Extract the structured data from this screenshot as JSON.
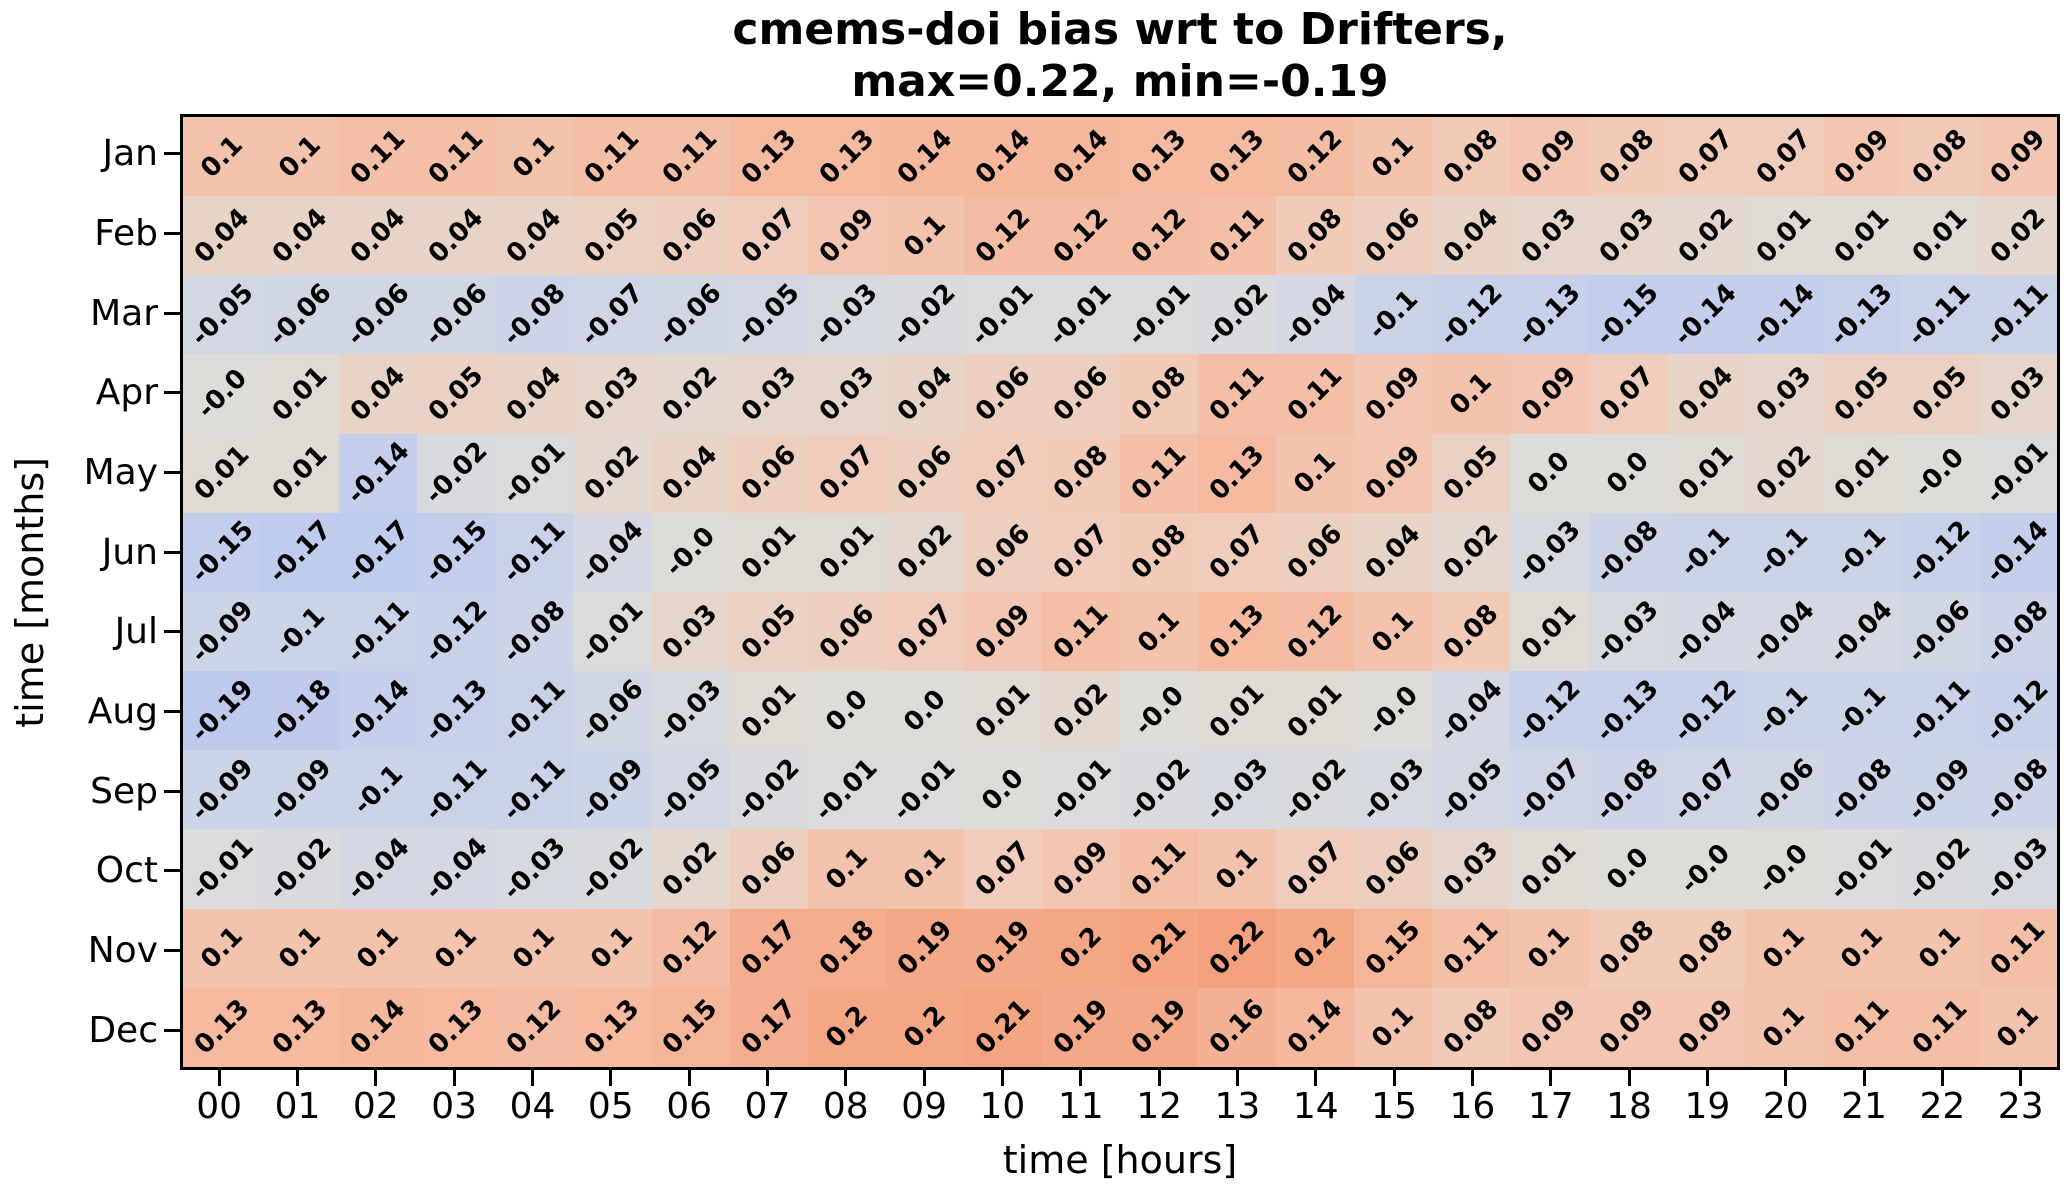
{
  "chart_data": {
    "type": "heatmap",
    "title_line1": "cmems-doi bias wrt to Drifters,",
    "title_line2": "max=0.22, min=-0.19",
    "stated_max": 0.22,
    "stated_min": -0.19,
    "xlabel": "time [hours]",
    "ylabel": "time [months]",
    "rows": [
      "Jan",
      "Feb",
      "Mar",
      "Apr",
      "May",
      "Jun",
      "Jul",
      "Aug",
      "Sep",
      "Oct",
      "Nov",
      "Dec"
    ],
    "columns": [
      "00",
      "01",
      "02",
      "03",
      "04",
      "05",
      "06",
      "07",
      "08",
      "09",
      "10",
      "11",
      "12",
      "13",
      "14",
      "15",
      "16",
      "17",
      "18",
      "19",
      "20",
      "21",
      "22",
      "23"
    ],
    "values": [
      [
        "0.1",
        "0.1",
        "0.11",
        "0.11",
        "0.1",
        "0.11",
        "0.11",
        "0.13",
        "0.13",
        "0.14",
        "0.14",
        "0.14",
        "0.13",
        "0.13",
        "0.12",
        "0.1",
        "0.08",
        "0.09",
        "0.08",
        "0.07",
        "0.07",
        "0.09",
        "0.08",
        "0.09"
      ],
      [
        "0.04",
        "0.04",
        "0.04",
        "0.04",
        "0.04",
        "0.05",
        "0.06",
        "0.07",
        "0.09",
        "0.1",
        "0.12",
        "0.12",
        "0.12",
        "0.11",
        "0.08",
        "0.06",
        "0.04",
        "0.03",
        "0.03",
        "0.02",
        "0.01",
        "0.01",
        "0.01",
        "0.02"
      ],
      [
        "-0.05",
        "-0.06",
        "-0.06",
        "-0.06",
        "-0.08",
        "-0.07",
        "-0.06",
        "-0.05",
        "-0.03",
        "-0.02",
        "-0.01",
        "-0.01",
        "-0.01",
        "-0.02",
        "-0.04",
        "-0.1",
        "-0.12",
        "-0.13",
        "-0.15",
        "-0.14",
        "-0.14",
        "-0.13",
        "-0.11",
        "-0.11"
      ],
      [
        "-0.0",
        "0.01",
        "0.04",
        "0.05",
        "0.04",
        "0.03",
        "0.02",
        "0.03",
        "0.03",
        "0.04",
        "0.06",
        "0.06",
        "0.08",
        "0.11",
        "0.11",
        "0.09",
        "0.1",
        "0.09",
        "0.07",
        "0.04",
        "0.03",
        "0.05",
        "0.05",
        "0.03"
      ],
      [
        "0.01",
        "0.01",
        "-0.14",
        "-0.02",
        "-0.01",
        "0.02",
        "0.04",
        "0.06",
        "0.07",
        "0.06",
        "0.07",
        "0.08",
        "0.11",
        "0.13",
        "0.1",
        "0.09",
        "0.05",
        "0.0",
        "0.0",
        "0.01",
        "0.02",
        "0.01",
        "-0.0",
        "-0.01"
      ],
      [
        "-0.15",
        "-0.17",
        "-0.17",
        "-0.15",
        "-0.11",
        "-0.04",
        "-0.0",
        "0.01",
        "0.01",
        "0.02",
        "0.06",
        "0.07",
        "0.08",
        "0.07",
        "0.06",
        "0.04",
        "0.02",
        "-0.03",
        "-0.08",
        "-0.1",
        "-0.1",
        "-0.1",
        "-0.12",
        "-0.14"
      ],
      [
        "-0.09",
        "-0.1",
        "-0.11",
        "-0.12",
        "-0.08",
        "-0.01",
        "0.03",
        "0.05",
        "0.06",
        "0.07",
        "0.09",
        "0.11",
        "0.1",
        "0.13",
        "0.12",
        "0.1",
        "0.08",
        "0.01",
        "-0.03",
        "-0.04",
        "-0.04",
        "-0.04",
        "-0.06",
        "-0.08"
      ],
      [
        "-0.19",
        "-0.18",
        "-0.14",
        "-0.13",
        "-0.11",
        "-0.06",
        "-0.03",
        "0.01",
        "0.0",
        "0.0",
        "0.01",
        "0.02",
        "-0.0",
        "0.01",
        "0.01",
        "-0.0",
        "-0.04",
        "-0.12",
        "-0.13",
        "-0.12",
        "-0.1",
        "-0.1",
        "-0.11",
        "-0.12"
      ],
      [
        "-0.09",
        "-0.09",
        "-0.1",
        "-0.11",
        "-0.11",
        "-0.09",
        "-0.05",
        "-0.02",
        "-0.01",
        "-0.01",
        "0.0",
        "-0.01",
        "-0.02",
        "-0.03",
        "-0.02",
        "-0.03",
        "-0.05",
        "-0.07",
        "-0.08",
        "-0.07",
        "-0.06",
        "-0.08",
        "-0.09",
        "-0.08"
      ],
      [
        "-0.01",
        "-0.02",
        "-0.04",
        "-0.04",
        "-0.03",
        "-0.02",
        "0.02",
        "0.06",
        "0.1",
        "0.1",
        "0.07",
        "0.09",
        "0.11",
        "0.1",
        "0.07",
        "0.06",
        "0.03",
        "0.01",
        "0.0",
        "-0.0",
        "-0.0",
        "-0.01",
        "-0.02",
        "-0.03"
      ],
      [
        "0.1",
        "0.1",
        "0.1",
        "0.1",
        "0.1",
        "0.1",
        "0.12",
        "0.17",
        "0.18",
        "0.19",
        "0.19",
        "0.2",
        "0.21",
        "0.22",
        "0.2",
        "0.15",
        "0.11",
        "0.1",
        "0.08",
        "0.08",
        "0.1",
        "0.1",
        "0.1",
        "0.11"
      ],
      [
        "0.13",
        "0.13",
        "0.14",
        "0.13",
        "0.12",
        "0.13",
        "0.15",
        "0.17",
        "0.2",
        "0.2",
        "0.21",
        "0.19",
        "0.19",
        "0.16",
        "0.14",
        "0.1",
        "0.08",
        "0.09",
        "0.09",
        "0.09",
        "0.1",
        "0.11",
        "0.11",
        "0.1"
      ]
    ],
    "annotation_rotation_deg": 45,
    "annotation_color": "#000000",
    "grid": false,
    "legend": "none",
    "colormap_anchors": [
      [
        -0.19,
        [
          189,
          201,
          237
        ]
      ],
      [
        -0.15,
        [
          195,
          206,
          236
        ]
      ],
      [
        -0.11,
        [
          201,
          210,
          233
        ]
      ],
      [
        -0.07,
        [
          207,
          213,
          230
        ]
      ],
      [
        -0.04,
        [
          213,
          216,
          226
        ]
      ],
      [
        -0.01,
        [
          219,
          219,
          220
        ]
      ],
      [
        0.0,
        [
          221,
          220,
          217
        ]
      ],
      [
        0.02,
        [
          227,
          215,
          207
        ]
      ],
      [
        0.05,
        [
          235,
          209,
          195
        ]
      ],
      [
        0.08,
        [
          241,
          202,
          184
        ]
      ],
      [
        0.11,
        [
          244,
          191,
          167
        ]
      ],
      [
        0.14,
        [
          245,
          184,
          156
        ]
      ],
      [
        0.17,
        [
          244,
          174,
          143
        ]
      ],
      [
        0.2,
        [
          243,
          167,
          133
        ]
      ],
      [
        0.22,
        [
          242,
          160,
          125
        ]
      ]
    ],
    "spine_color": "#000000",
    "tick_color": "#000000"
  }
}
